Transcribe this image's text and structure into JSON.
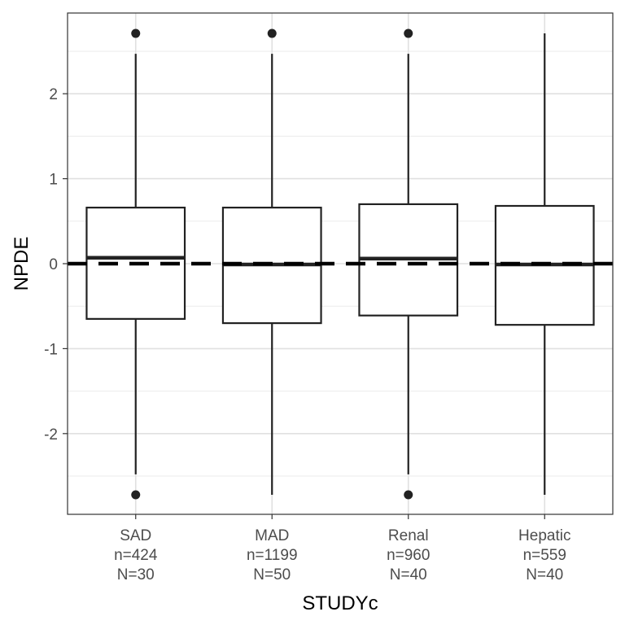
{
  "chart_data": {
    "type": "box",
    "xlabel": "STUDYc",
    "ylabel": "NPDE",
    "ylim": [
      -2.95,
      2.95
    ],
    "yticks": [
      -2,
      -1,
      0,
      1,
      2
    ],
    "ytick_labels": [
      "-2",
      "-1",
      "0",
      "1",
      "2"
    ],
    "grid": true,
    "reference_line": {
      "y": 0,
      "style": "dashed"
    },
    "categories": [
      {
        "name": "SAD",
        "n_label": "n=424",
        "N_label": "N=30",
        "whisker_low": -2.48,
        "q1": -0.65,
        "median": 0.07,
        "q3": 0.66,
        "whisker_high": 2.47,
        "outliers": [
          -2.72,
          2.71
        ]
      },
      {
        "name": "MAD",
        "n_label": "n=1199",
        "N_label": "N=50",
        "whisker_low": -2.72,
        "q1": -0.7,
        "median": -0.01,
        "q3": 0.66,
        "whisker_high": 2.47,
        "outliers": [
          2.71
        ]
      },
      {
        "name": "Renal",
        "n_label": "n=960",
        "N_label": "N=40",
        "whisker_low": -2.48,
        "q1": -0.61,
        "median": 0.06,
        "q3": 0.7,
        "whisker_high": 2.47,
        "outliers": [
          -2.72,
          2.71
        ]
      },
      {
        "name": "Hepatic",
        "n_label": "n=559",
        "N_label": "N=40",
        "whisker_low": -2.72,
        "q1": -0.72,
        "median": -0.01,
        "q3": 0.68,
        "whisker_high": 2.71,
        "outliers": []
      }
    ]
  }
}
